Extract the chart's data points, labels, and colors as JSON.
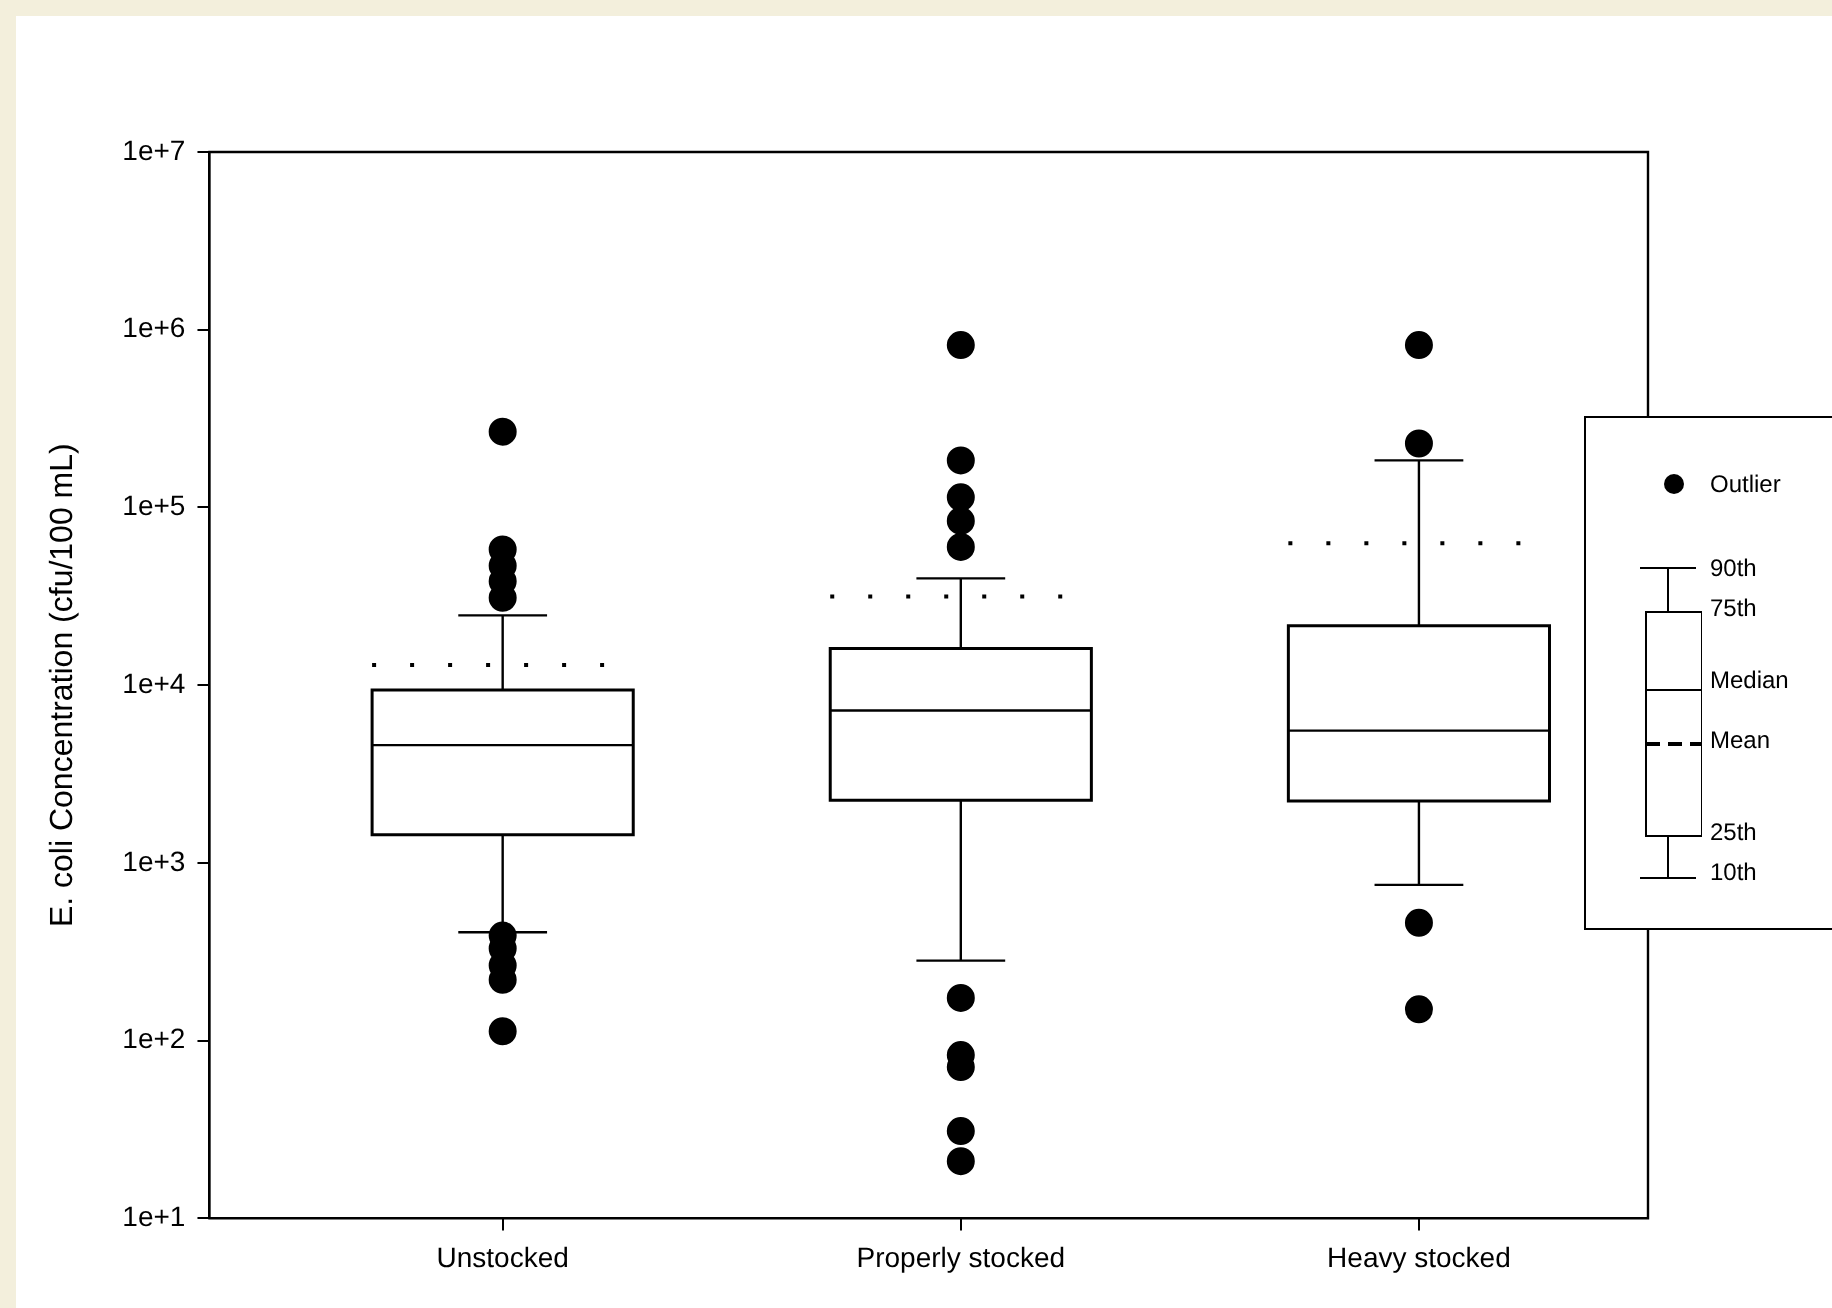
{
  "chart_data": {
    "type": "box",
    "ylabel": "E. coli Concentration (cfu/100 mL)",
    "categories": [
      "Unstocked",
      "Properly stocked",
      "Heavy stocked"
    ],
    "boxes": [
      {
        "low": 407,
        "q1": 1440,
        "median": 4600,
        "q3": 9400,
        "high": 24700,
        "mean": 13000,
        "outliers": [
          267000,
          58000,
          47000,
          38500,
          31000,
          390,
          330,
          265,
          220,
          113
        ]
      },
      {
        "low": 282,
        "q1": 2250,
        "median": 7200,
        "q3": 16100,
        "high": 39900,
        "mean": 31600,
        "outliers": [
          820000,
          184000,
          114000,
          84000,
          60000,
          174,
          83,
          71,
          31,
          21
        ]
      },
      {
        "low": 753,
        "q1": 2230,
        "median": 5550,
        "q3": 21600,
        "high": 184000,
        "mean": 63000,
        "outliers": [
          820000,
          229000,
          460,
          150
        ]
      }
    ],
    "color": "#000000",
    "log": "y",
    "ylim": [
      10,
      10000000
    ],
    "yticks": [
      {
        "value": 10,
        "label": "1e+1"
      },
      {
        "value": 100,
        "label": "1e+2"
      },
      {
        "value": 1000,
        "label": "1e+3"
      },
      {
        "value": 10000,
        "label": "1e+4"
      },
      {
        "value": 100000,
        "label": "1e+5"
      },
      {
        "value": 1000000,
        "label": "1e+6"
      },
      {
        "value": 10000000,
        "label": "1e+7"
      }
    ],
    "marker": "circle",
    "annotations": [
      "Outlier",
      "90th",
      "75th",
      "Median",
      "Mean",
      "25th",
      "10th"
    ]
  }
}
